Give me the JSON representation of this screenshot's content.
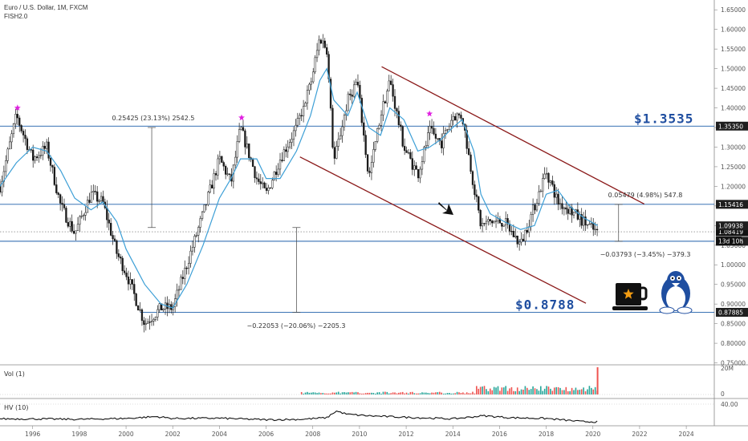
{
  "header": {
    "title": "Euro / U.S. Dollar, 1M, FXCM",
    "subtitle": "FISH2.0"
  },
  "colors": {
    "candle": "#1a1a1a",
    "ma": "#3d9fd6",
    "hline": "#1f5faa",
    "channel": "#8b1a1a",
    "star": "#e020e0",
    "price_big": "#1f4ea0",
    "vol_up": "#26a69a",
    "vol_down": "#ef5350"
  },
  "chart_data": {
    "type": "candlestick",
    "x_range": [
      1994.6,
      2025.2
    ],
    "y_range": [
      0.745,
      1.675
    ],
    "y_ticks": [
      "1.65000",
      "1.60000",
      "1.55000",
      "1.50000",
      "1.45000",
      "1.40000",
      "1.35000",
      "1.30000",
      "1.25000",
      "1.20000",
      "1.15000",
      "1.10000",
      "1.05000",
      "1.00000",
      "0.95000",
      "0.90000",
      "0.85000",
      "0.80000",
      "0.75000"
    ],
    "x_ticks": [
      "1996",
      "1998",
      "2000",
      "2002",
      "2004",
      "2006",
      "2008",
      "2010",
      "2012",
      "2014",
      "2016",
      "2018",
      "2020",
      "2022",
      "2024"
    ],
    "price_path": [
      [
        1994.6,
        1.2
      ],
      [
        1995.3,
        1.38
      ],
      [
        1996.0,
        1.27
      ],
      [
        1996.6,
        1.3
      ],
      [
        1997.2,
        1.15
      ],
      [
        1997.8,
        1.08
      ],
      [
        1998.5,
        1.18
      ],
      [
        1999.0,
        1.16
      ],
      [
        1999.6,
        1.03
      ],
      [
        2000.0,
        0.98
      ],
      [
        2000.8,
        0.85
      ],
      [
        2001.5,
        0.89
      ],
      [
        2002.0,
        0.89
      ],
      [
        2002.6,
        1.0
      ],
      [
        2003.3,
        1.13
      ],
      [
        2004.0,
        1.27
      ],
      [
        2004.5,
        1.21
      ],
      [
        2004.9,
        1.35
      ],
      [
        2005.6,
        1.22
      ],
      [
        2006.0,
        1.18
      ],
      [
        2006.6,
        1.27
      ],
      [
        2007.3,
        1.35
      ],
      [
        2007.9,
        1.46
      ],
      [
        2008.3,
        1.58
      ],
      [
        2008.6,
        1.55
      ],
      [
        2008.9,
        1.26
      ],
      [
        2009.5,
        1.42
      ],
      [
        2009.9,
        1.47
      ],
      [
        2010.4,
        1.22
      ],
      [
        2010.9,
        1.38
      ],
      [
        2011.3,
        1.47
      ],
      [
        2011.9,
        1.3
      ],
      [
        2012.5,
        1.23
      ],
      [
        2013.0,
        1.34
      ],
      [
        2013.5,
        1.31
      ],
      [
        2014.0,
        1.38
      ],
      [
        2014.4,
        1.38
      ],
      [
        2014.9,
        1.2
      ],
      [
        2015.2,
        1.1
      ],
      [
        2015.6,
        1.11
      ],
      [
        2016.2,
        1.11
      ],
      [
        2016.9,
        1.05
      ],
      [
        2017.5,
        1.15
      ],
      [
        2018.0,
        1.24
      ],
      [
        2018.5,
        1.16
      ],
      [
        2019.0,
        1.14
      ],
      [
        2019.6,
        1.11
      ],
      [
        2020.2,
        1.08
      ]
    ],
    "ma_path": [
      [
        1994.6,
        1.2
      ],
      [
        1995.3,
        1.26
      ],
      [
        1996.0,
        1.3
      ],
      [
        1996.6,
        1.29
      ],
      [
        1997.2,
        1.24
      ],
      [
        1997.8,
        1.17
      ],
      [
        1998.5,
        1.14
      ],
      [
        1999.0,
        1.16
      ],
      [
        1999.6,
        1.11
      ],
      [
        2000.0,
        1.04
      ],
      [
        2000.8,
        0.95
      ],
      [
        2001.5,
        0.9
      ],
      [
        2002.0,
        0.89
      ],
      [
        2002.6,
        0.95
      ],
      [
        2003.3,
        1.05
      ],
      [
        2004.0,
        1.17
      ],
      [
        2004.5,
        1.22
      ],
      [
        2004.9,
        1.27
      ],
      [
        2005.6,
        1.27
      ],
      [
        2006.0,
        1.22
      ],
      [
        2006.6,
        1.22
      ],
      [
        2007.3,
        1.29
      ],
      [
        2007.9,
        1.38
      ],
      [
        2008.3,
        1.47
      ],
      [
        2008.6,
        1.5
      ],
      [
        2008.9,
        1.42
      ],
      [
        2009.5,
        1.38
      ],
      [
        2009.9,
        1.44
      ],
      [
        2010.4,
        1.35
      ],
      [
        2010.9,
        1.33
      ],
      [
        2011.3,
        1.4
      ],
      [
        2011.9,
        1.37
      ],
      [
        2012.5,
        1.29
      ],
      [
        2013.0,
        1.3
      ],
      [
        2013.5,
        1.32
      ],
      [
        2014.0,
        1.35
      ],
      [
        2014.4,
        1.37
      ],
      [
        2014.9,
        1.29
      ],
      [
        2015.2,
        1.18
      ],
      [
        2015.6,
        1.13
      ],
      [
        2016.2,
        1.11
      ],
      [
        2016.9,
        1.09
      ],
      [
        2017.5,
        1.1
      ],
      [
        2018.0,
        1.18
      ],
      [
        2018.5,
        1.19
      ],
      [
        2019.0,
        1.15
      ],
      [
        2019.6,
        1.12
      ],
      [
        2020.2,
        1.1
      ]
    ],
    "hv_path": [
      [
        1994.6,
        0.2
      ],
      [
        1996.0,
        0.2
      ],
      [
        1998.0,
        0.18
      ],
      [
        2000.0,
        0.22
      ],
      [
        2001.3,
        0.3
      ],
      [
        2002.0,
        0.22
      ],
      [
        2004.0,
        0.23
      ],
      [
        2006.0,
        0.16
      ],
      [
        2007.5,
        0.18
      ],
      [
        2008.6,
        0.25
      ],
      [
        2009.0,
        0.55
      ],
      [
        2009.5,
        0.4
      ],
      [
        2010.5,
        0.33
      ],
      [
        2012.0,
        0.27
      ],
      [
        2014.0,
        0.2
      ],
      [
        2015.3,
        0.34
      ],
      [
        2016.5,
        0.25
      ],
      [
        2018.0,
        0.22
      ],
      [
        2019.5,
        0.08
      ],
      [
        2020.2,
        0.07
      ]
    ],
    "horizontal_lines": [
      {
        "price": 1.3535,
        "label": "1.35350",
        "big_label": "$1.3535"
      },
      {
        "price": 1.15416,
        "label": "1.15416"
      },
      {
        "price": 1.06005,
        "label": "1.06005"
      },
      {
        "price": 0.87885,
        "label": "0.87885",
        "big_label": "$0.8788"
      }
    ],
    "current_price": {
      "price": 1.08419,
      "label": "1.08419",
      "countdown": "13d 10h"
    },
    "other_price_label": {
      "price": 1.09938,
      "label": "1.09938"
    },
    "channel": {
      "upper": [
        [
          2010.95,
          1.505
        ],
        [
          2022.2,
          1.155
        ]
      ],
      "lower": [
        [
          2007.45,
          1.275
        ],
        [
          2019.7,
          0.902
        ]
      ]
    },
    "stars": [
      [
        1995.35,
        1.4
      ],
      [
        2004.95,
        1.375
      ],
      [
        2013.0,
        1.385
      ]
    ],
    "measurements": [
      {
        "x": 2001.1,
        "from": 1.35,
        "to": 1.095,
        "text": "0.25425 (23.13%) 2542.5"
      },
      {
        "x": 2007.3,
        "from": 1.095,
        "to": 0.879,
        "text": "−0.22053 (−20.06%) −2205.3"
      },
      {
        "x": 2021.1,
        "from": 1.154,
        "to": 1.06,
        "text": "0.05479 (4.98%) 547.8"
      },
      {
        "x": 2021.1,
        "from": 1.154,
        "to": 1.06,
        "text": "−0.03793 (−3.45%) −379.3"
      }
    ],
    "volume_panel": {
      "label": "Vol (1)",
      "scale_top": "20M",
      "scale_bottom": "0"
    },
    "hv_panel": {
      "label": "HV (10)",
      "scale_top": "40.00"
    }
  },
  "icons": {
    "arrow": "down-right-arrow-icon",
    "coffee": "coffee-cup-icon",
    "penguin": "tux-penguin-icon"
  }
}
